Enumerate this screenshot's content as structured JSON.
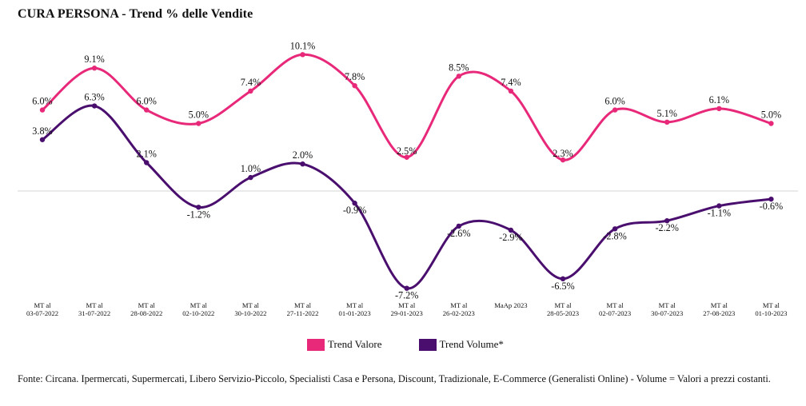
{
  "title": "CURA PERSONA - Trend % delle Vendite",
  "source": "Fonte: Circana. Ipermercati, Supermercati, Libero Servizio-Piccolo, Specialisti Casa e Persona, Discount, Tradizionale, E-Commerce (Generalisti Online) - Volume = Valori a prezzi costanti.",
  "chart_data": {
    "type": "line",
    "title": "CURA PERSONA - Trend % delle Vendite",
    "xlabel": "",
    "ylabel": "",
    "grid": false,
    "legend_position": "bottom",
    "categories": [
      [
        "MT al",
        "03-07-2022"
      ],
      [
        "MT al",
        "31-07-2022"
      ],
      [
        "MT al",
        "28-08-2022"
      ],
      [
        "MT al",
        "02-10-2022"
      ],
      [
        "MT al",
        "30-10-2022"
      ],
      [
        "MT al",
        "27-11-2022"
      ],
      [
        "MT al",
        "01-01-2023"
      ],
      [
        "MT al",
        "29-01-2023"
      ],
      [
        "MT al",
        "26-02-2023"
      ],
      [
        "MaAp 2023"
      ],
      [
        "MT al",
        "28-05-2023"
      ],
      [
        "MT al",
        "02-07-2023"
      ],
      [
        "MT al",
        "30-07-2023"
      ],
      [
        "MT al",
        "27-08-2023"
      ],
      [
        "MT al",
        "01-10-2023"
      ]
    ],
    "series": [
      {
        "name": "Trend Valore",
        "color": "#e8297a",
        "values": [
          6.0,
          9.1,
          6.0,
          5.0,
          7.4,
          10.1,
          7.8,
          2.5,
          8.5,
          7.4,
          2.3,
          6.0,
          5.1,
          6.1,
          5.0
        ],
        "labels": [
          "6.0%",
          "9.1%",
          "6.0%",
          "5.0%",
          "7.4%",
          "10.1%",
          "7.8%",
          "2.5%",
          "8.5%",
          "7.4%",
          "2.3%",
          "6.0%",
          "5.1%",
          "6.1%",
          "5.0%"
        ]
      },
      {
        "name": "Trend Volume*",
        "color": "#4a0f6e",
        "values": [
          3.8,
          6.3,
          2.1,
          -1.2,
          1.0,
          2.0,
          -0.9,
          -7.2,
          -2.6,
          -2.9,
          -6.5,
          -2.8,
          -2.2,
          -1.1,
          -0.6
        ],
        "labels": [
          "3.8%",
          "6.3%",
          "2.1%",
          "-1.2%",
          "1.0%",
          "2.0%",
          "-0.9%",
          "-7.2%",
          "-2.6%",
          "-2.9%",
          "-6.5%",
          "-2.8%",
          "-2.2%",
          "-1.1%",
          "-0.6%"
        ]
      }
    ]
  }
}
